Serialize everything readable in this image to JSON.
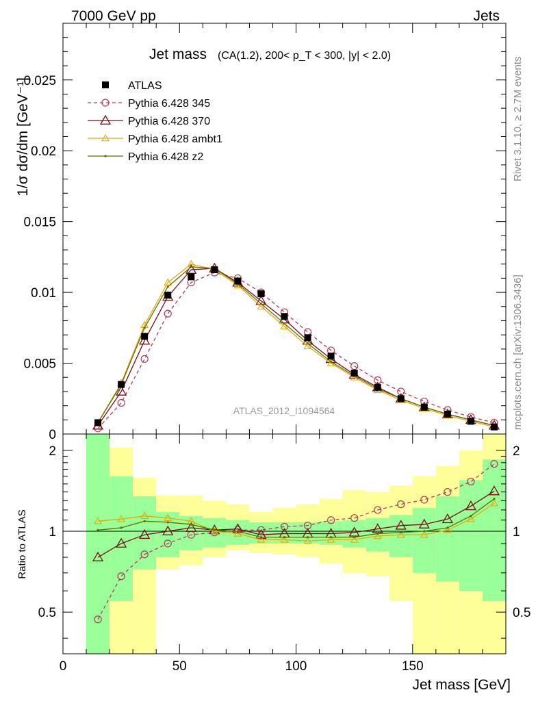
{
  "header": {
    "left": "7000 GeV pp",
    "right": "Jets"
  },
  "side_labels": {
    "rivet": "Rivet 3.1.10, ≥ 2.7M events",
    "mcplots": "mcplots.cern.ch [arXiv:1306.3436]"
  },
  "chart_data": {
    "type": "line",
    "title": "Jet mass",
    "subtitle": "(CA(1.2), 200< p_T < 300, |y| < 2.0)",
    "analysis_label": "ATLAS_2012_I1094564",
    "xlabel": "Jet mass [GeV]",
    "ylabel": "1/σ dσ/dm [GeV⁻¹]",
    "ratio_ylabel": "Ratio to ATLAS",
    "xlim": [
      0,
      190
    ],
    "ylim": [
      0,
      0.029
    ],
    "ratio_ylim": [
      0.35,
      2.3
    ],
    "grid": false,
    "legend_position": "top-left",
    "x_ticks": [
      "0",
      "50",
      "100",
      "150"
    ],
    "y_ticks": [
      "0",
      "0.005",
      "0.01",
      "0.015",
      "0.02",
      "0.025"
    ],
    "ratio_ticks": [
      "0.5",
      "1",
      "2"
    ],
    "x": [
      15,
      25,
      35,
      45,
      55,
      65,
      75,
      85,
      95,
      105,
      115,
      125,
      135,
      145,
      155,
      165,
      175,
      185
    ],
    "bin_edges": [
      10,
      20,
      30,
      40,
      50,
      60,
      70,
      80,
      90,
      100,
      110,
      120,
      130,
      140,
      150,
      160,
      170,
      180,
      190
    ],
    "series": [
      {
        "name": "ATLAS",
        "color": "#000000",
        "style": "data",
        "values": [
          0.0008,
          0.0035,
          0.0069,
          0.0098,
          0.0111,
          0.0116,
          0.0108,
          0.0099,
          0.0083,
          0.0068,
          0.0055,
          0.0043,
          0.0033,
          0.0025,
          0.0019,
          0.0014,
          0.0009,
          0.0005
        ]
      },
      {
        "name": "Pythia 6.428 345",
        "color": "#b03a58",
        "style": "dashed-circle",
        "values": [
          0.0004,
          0.0022,
          0.0053,
          0.0085,
          0.0107,
          0.0114,
          0.011,
          0.01,
          0.0086,
          0.0072,
          0.0059,
          0.0048,
          0.0038,
          0.003,
          0.0023,
          0.0017,
          0.0012,
          0.0008
        ],
        "ratio": [
          0.47,
          0.68,
          0.82,
          0.9,
          0.97,
          0.99,
          1.01,
          1.01,
          1.04,
          1.05,
          1.1,
          1.12,
          1.2,
          1.26,
          1.31,
          1.4,
          1.53,
          1.78
        ]
      },
      {
        "name": "Pythia 6.428 370",
        "color": "#7a0a14",
        "style": "triangle",
        "values": [
          0.0006,
          0.003,
          0.0066,
          0.0097,
          0.0116,
          0.0117,
          0.0107,
          0.0094,
          0.0081,
          0.0066,
          0.0053,
          0.0042,
          0.0033,
          0.0025,
          0.0019,
          0.0014,
          0.001,
          0.0006
        ],
        "ratio": [
          0.8,
          0.9,
          0.97,
          1.0,
          1.03,
          1.01,
          1.02,
          0.97,
          0.98,
          0.98,
          0.98,
          0.99,
          1.02,
          1.05,
          1.06,
          1.11,
          1.24,
          1.41
        ]
      },
      {
        "name": "Pythia 6.428 ambt1",
        "color": "#e8a800",
        "style": "small-triangle",
        "values": [
          0.0008,
          0.0036,
          0.0077,
          0.0107,
          0.012,
          0.0116,
          0.0105,
          0.009,
          0.0076,
          0.0062,
          0.005,
          0.004,
          0.0031,
          0.0024,
          0.0018,
          0.0013,
          0.0009,
          0.0005
        ],
        "ratio": [
          1.09,
          1.11,
          1.14,
          1.12,
          1.09,
          1.0,
          0.98,
          0.93,
          0.93,
          0.92,
          0.93,
          0.93,
          0.96,
          0.97,
          0.97,
          1.01,
          1.11,
          1.27
        ]
      },
      {
        "name": "Pythia 6.428 z2",
        "color": "#5a7000",
        "style": "dot",
        "values": [
          0.0008,
          0.0035,
          0.0075,
          0.0104,
          0.0118,
          0.0117,
          0.0106,
          0.0092,
          0.0078,
          0.0064,
          0.0051,
          0.0041,
          0.0032,
          0.0025,
          0.0019,
          0.0014,
          0.001,
          0.0006
        ],
        "ratio": [
          1.01,
          1.03,
          1.09,
          1.08,
          1.06,
          1.01,
          1.0,
          0.95,
          0.95,
          0.95,
          0.95,
          0.95,
          0.98,
          0.99,
          1.0,
          1.03,
          1.14,
          1.32
        ]
      }
    ],
    "uncertainty_bands": {
      "inner_color": "#99ff99",
      "outer_color": "#ffff99",
      "inner": {
        "low": [
          0.3,
          0.55,
          0.72,
          0.8,
          0.85,
          0.87,
          0.89,
          0.9,
          0.9,
          0.9,
          0.89,
          0.87,
          0.84,
          0.8,
          0.7,
          0.65,
          0.6,
          0.55
        ],
        "high": [
          2.3,
          1.6,
          1.35,
          1.18,
          1.14,
          1.12,
          1.1,
          1.08,
          1.08,
          1.08,
          1.09,
          1.1,
          1.12,
          1.15,
          1.22,
          1.35,
          1.55,
          1.85
        ]
      },
      "outer": {
        "low": [
          0.3,
          0.3,
          0.3,
          0.72,
          0.75,
          0.8,
          0.85,
          0.83,
          0.82,
          0.8,
          0.76,
          0.7,
          0.68,
          0.55,
          0.35,
          0.35,
          0.35,
          0.35
        ],
        "high": [
          2.3,
          2.05,
          1.58,
          1.36,
          1.36,
          1.3,
          1.26,
          1.18,
          1.22,
          1.26,
          1.32,
          1.42,
          1.4,
          1.48,
          1.6,
          1.75,
          2.0,
          2.3
        ]
      }
    }
  }
}
